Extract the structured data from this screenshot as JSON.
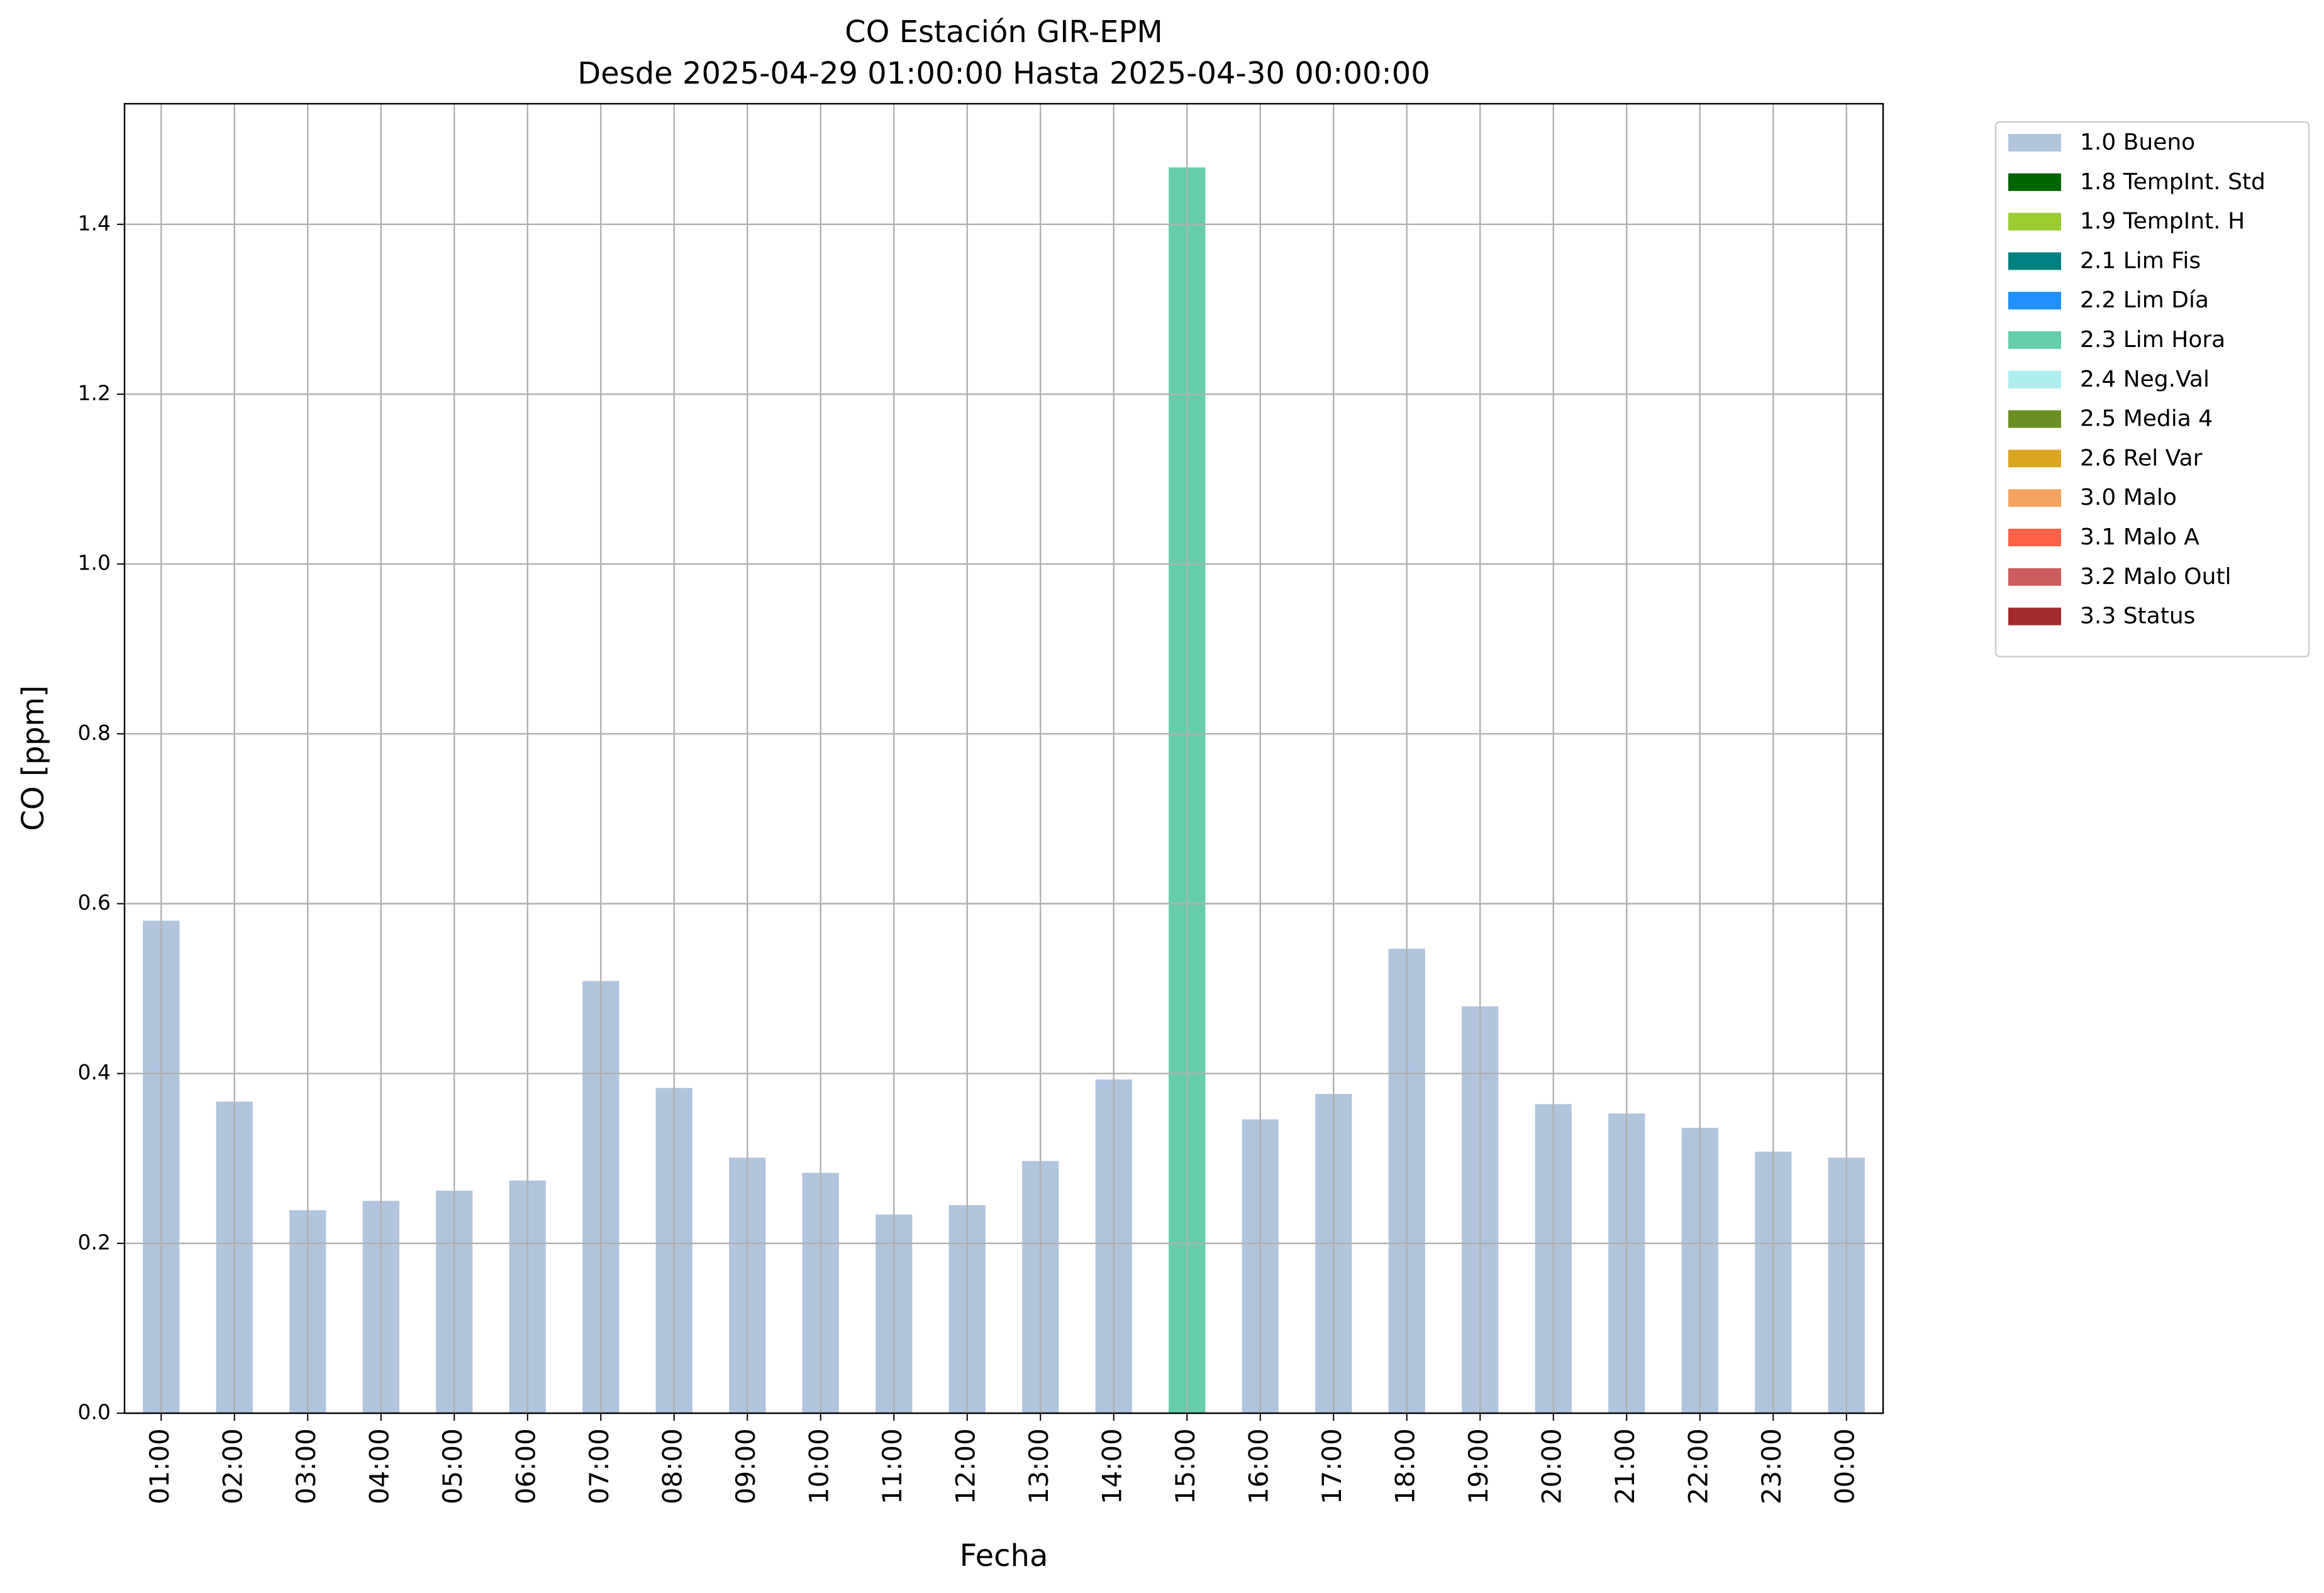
{
  "chart_data": {
    "type": "bar",
    "stacked": true,
    "title": "CO Estación GIR-EPM",
    "subtitle": "Desde 2025-04-29 01:00:00 Hasta 2025-04-30 00:00:00",
    "x_label": "Fecha",
    "y_label": "CO [ppm]",
    "categories": [
      "01:00",
      "02:00",
      "03:00",
      "04:00",
      "05:00",
      "06:00",
      "07:00",
      "08:00",
      "09:00",
      "10:00",
      "11:00",
      "12:00",
      "13:00",
      "14:00",
      "15:00",
      "16:00",
      "17:00",
      "18:00",
      "19:00",
      "20:00",
      "21:00",
      "22:00",
      "23:00",
      "00:00"
    ],
    "series": [
      {
        "name": "1.0 Bueno",
        "color": "#b0c4de",
        "values": [
          0.58,
          0.367,
          0.239,
          0.25,
          0.262,
          0.274,
          0.509,
          0.383,
          0.301,
          0.283,
          0.234,
          0.245,
          0.297,
          0.393,
          null,
          0.346,
          0.376,
          0.547,
          0.479,
          0.364,
          0.353,
          0.336,
          0.308,
          0.301
        ]
      },
      {
        "name": "1.8 TempInt. Std",
        "color": "#006400",
        "values": [
          null,
          null,
          null,
          null,
          null,
          null,
          null,
          null,
          null,
          null,
          null,
          null,
          null,
          null,
          null,
          null,
          null,
          null,
          null,
          null,
          null,
          null,
          null,
          null
        ]
      },
      {
        "name": "1.9 TempInt. H",
        "color": "#9acd32",
        "values": [
          null,
          null,
          null,
          null,
          null,
          null,
          null,
          null,
          null,
          null,
          null,
          null,
          null,
          null,
          null,
          null,
          null,
          null,
          null,
          null,
          null,
          null,
          null,
          null
        ]
      },
      {
        "name": "2.1 Lim Fis",
        "color": "#008080",
        "values": [
          null,
          null,
          null,
          null,
          null,
          null,
          null,
          null,
          null,
          null,
          null,
          null,
          null,
          null,
          null,
          null,
          null,
          null,
          null,
          null,
          null,
          null,
          null,
          null
        ]
      },
      {
        "name": "2.2 Lim Día",
        "color": "#1e90ff",
        "values": [
          null,
          null,
          null,
          null,
          null,
          null,
          null,
          null,
          null,
          null,
          null,
          null,
          null,
          null,
          null,
          null,
          null,
          null,
          null,
          null,
          null,
          null,
          null,
          null
        ]
      },
      {
        "name": "2.3 Lim Hora",
        "color": "#66cdaa",
        "values": [
          null,
          null,
          null,
          null,
          null,
          null,
          null,
          null,
          null,
          null,
          null,
          null,
          null,
          null,
          1.467,
          null,
          null,
          null,
          null,
          null,
          null,
          null,
          null,
          null
        ]
      },
      {
        "name": "2.4 Neg.Val",
        "color": "#afeeee",
        "values": [
          null,
          null,
          null,
          null,
          null,
          null,
          null,
          null,
          null,
          null,
          null,
          null,
          null,
          null,
          null,
          null,
          null,
          null,
          null,
          null,
          null,
          null,
          null,
          null
        ]
      },
      {
        "name": "2.5 Media 4",
        "color": "#6b8e23",
        "values": [
          null,
          null,
          null,
          null,
          null,
          null,
          null,
          null,
          null,
          null,
          null,
          null,
          null,
          null,
          null,
          null,
          null,
          null,
          null,
          null,
          null,
          null,
          null,
          null
        ]
      },
      {
        "name": "2.6 Rel Var",
        "color": "#daa520",
        "values": [
          null,
          null,
          null,
          null,
          null,
          null,
          null,
          null,
          null,
          null,
          null,
          null,
          null,
          null,
          null,
          null,
          null,
          null,
          null,
          null,
          null,
          null,
          null,
          null
        ]
      },
      {
        "name": "3.0 Malo",
        "color": "#f4a460",
        "values": [
          null,
          null,
          null,
          null,
          null,
          null,
          null,
          null,
          null,
          null,
          null,
          null,
          null,
          null,
          null,
          null,
          null,
          null,
          null,
          null,
          null,
          null,
          null,
          null
        ]
      },
      {
        "name": "3.1 Malo A",
        "color": "#ff6347",
        "values": [
          null,
          null,
          null,
          null,
          null,
          null,
          null,
          null,
          null,
          null,
          null,
          null,
          null,
          null,
          null,
          null,
          null,
          null,
          null,
          null,
          null,
          null,
          null,
          null
        ]
      },
      {
        "name": "3.2 Malo Outl",
        "color": "#cd5c5c",
        "values": [
          null,
          null,
          null,
          null,
          null,
          null,
          null,
          null,
          null,
          null,
          null,
          null,
          null,
          null,
          null,
          null,
          null,
          null,
          null,
          null,
          null,
          null,
          null,
          null
        ]
      },
      {
        "name": "3.3 Status",
        "color": "#a52a2a",
        "values": [
          null,
          null,
          null,
          null,
          null,
          null,
          null,
          null,
          null,
          null,
          null,
          null,
          null,
          null,
          null,
          null,
          null,
          null,
          null,
          null,
          null,
          null,
          null,
          null
        ]
      }
    ],
    "ylim": [
      0,
      1.542
    ],
    "yticks": [
      {
        "value": 0,
        "label": "0.0"
      },
      0.2,
      0.4,
      0.6,
      0.8,
      {
        "value": 1,
        "label": "1.0"
      },
      1.2,
      1.4
    ],
    "grid": true,
    "legend": "outside-right"
  }
}
